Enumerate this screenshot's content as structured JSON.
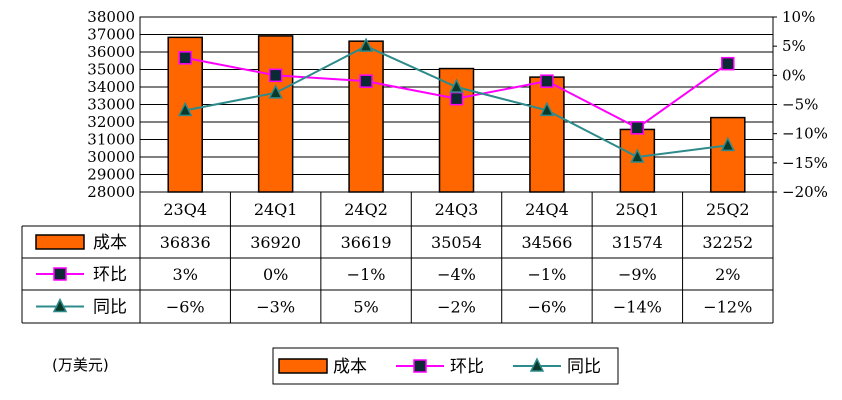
{
  "unit_note": "(万美元)",
  "chart_data": {
    "type": "bar",
    "categories": [
      "23Q4",
      "24Q1",
      "24Q2",
      "24Q3",
      "24Q4",
      "25Q1",
      "25Q2"
    ],
    "series": [
      {
        "name": "成本",
        "kind": "bar",
        "axis": "left",
        "color": "#ff6600",
        "values": [
          36836,
          36920,
          36619,
          35054,
          34566,
          31574,
          32252
        ]
      },
      {
        "name": "环比",
        "kind": "line",
        "axis": "right",
        "color": "#ff00ff",
        "marker": "square",
        "values": [
          3,
          0,
          -1,
          -4,
          -1,
          -9,
          2
        ]
      },
      {
        "name": "同比",
        "kind": "line",
        "axis": "right",
        "color": "#2e8b8b",
        "marker": "triangle",
        "values": [
          -6,
          -3,
          5,
          -2,
          -6,
          -14,
          -12
        ]
      }
    ],
    "y_left": {
      "min": 28000,
      "max": 38000,
      "step": 1000
    },
    "y_right": {
      "min": -20,
      "max": 10,
      "step": 5,
      "tick_suffix": "%"
    },
    "table": {
      "rows": [
        {
          "label": "成本",
          "cells": [
            "36836",
            "36920",
            "36619",
            "35054",
            "34566",
            "31574",
            "32252"
          ]
        },
        {
          "label": "环比",
          "cells": [
            "3%",
            "0%",
            "−1%",
            "−4%",
            "−1%",
            "−9%",
            "2%"
          ]
        },
        {
          "label": "同比",
          "cells": [
            "−6%",
            "−3%",
            "5%",
            "−2%",
            "−6%",
            "−14%",
            "−12%"
          ]
        }
      ]
    },
    "legend": {
      "placement": "bottom-center",
      "items": [
        "成本",
        "环比",
        "同比"
      ]
    },
    "grid": true
  }
}
